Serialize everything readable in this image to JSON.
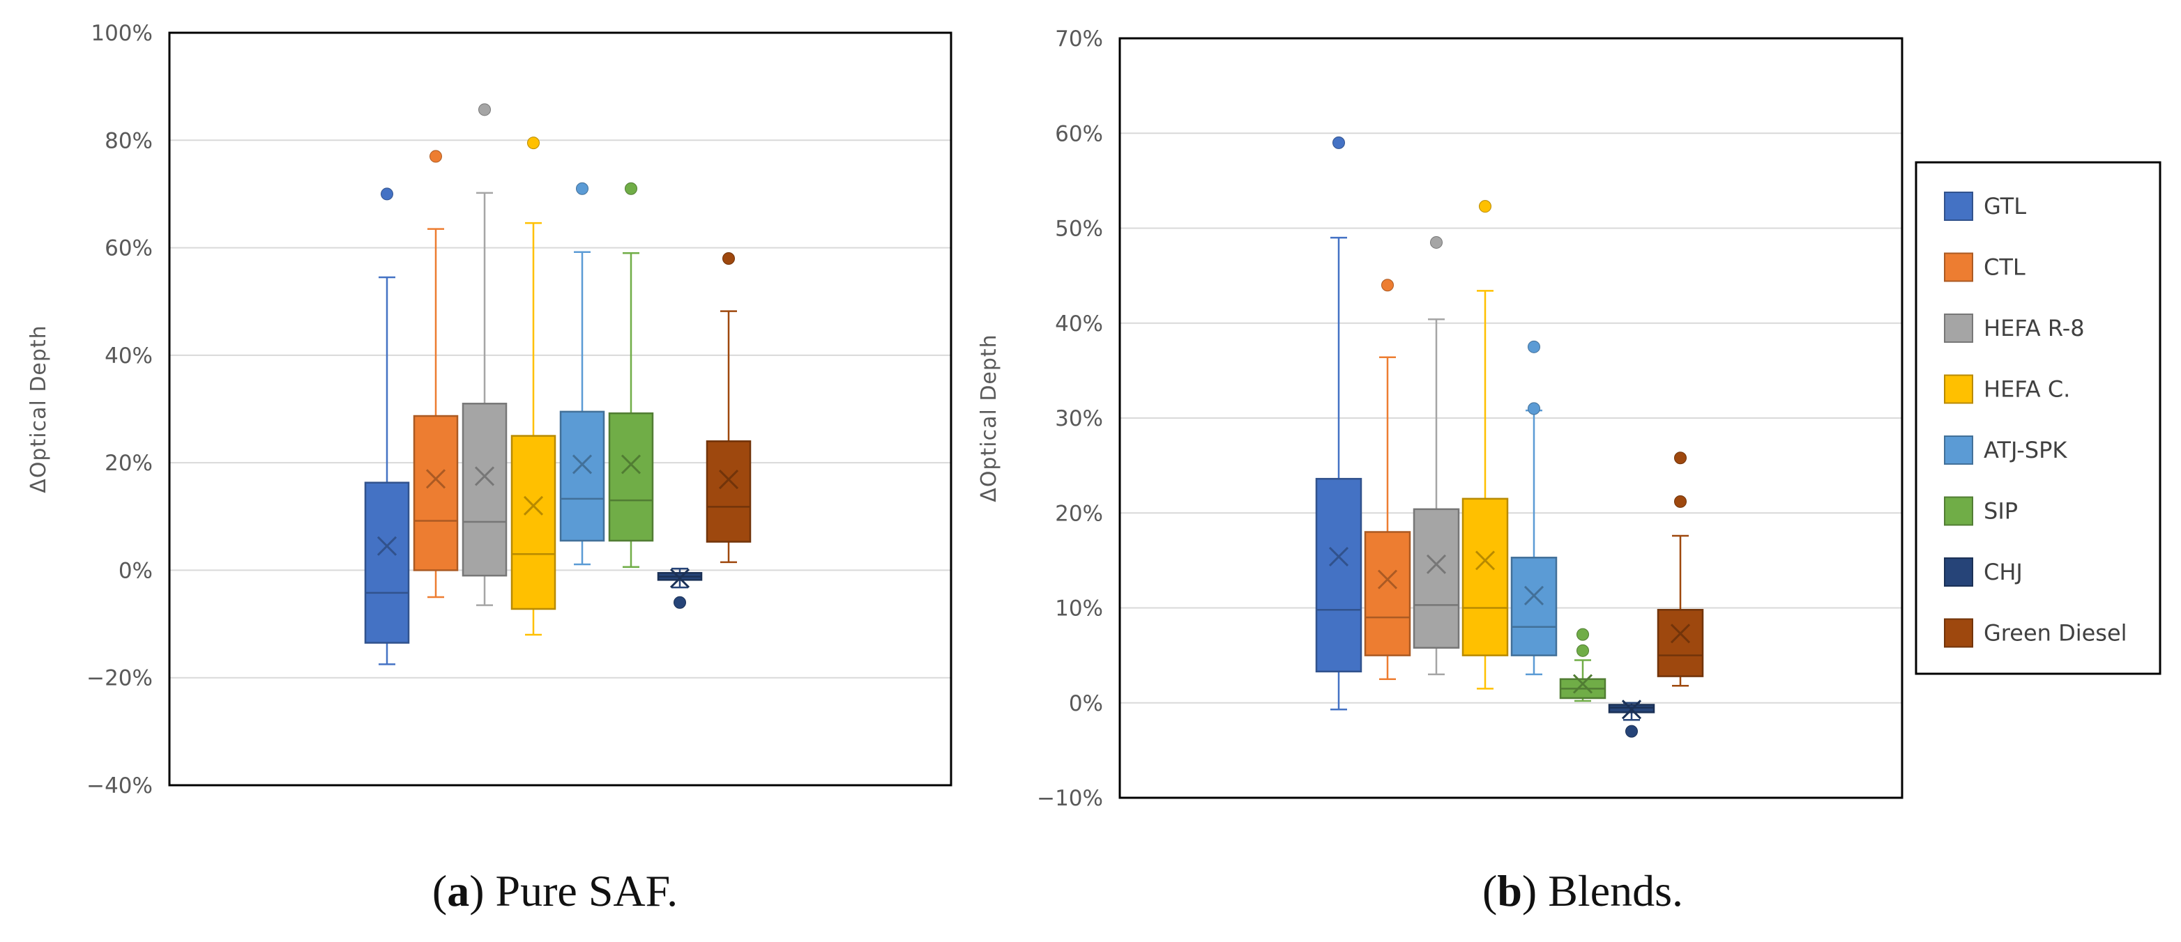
{
  "figure": {
    "captions": [
      {
        "prefix": "(",
        "letter": "a",
        "suffix": ")",
        "text": " Pure SAF."
      },
      {
        "prefix": "(",
        "letter": "b",
        "suffix": ")",
        "text": " Blends."
      }
    ]
  },
  "legend": {
    "items": [
      {
        "label": "GTL",
        "color": "#4472C4"
      },
      {
        "label": "CTL",
        "color": "#ED7D31"
      },
      {
        "label": "HEFA R-8",
        "color": "#A5A5A5"
      },
      {
        "label": "HEFA C.",
        "color": "#FFC000"
      },
      {
        "label": "ATJ-SPK",
        "color": "#5B9BD5"
      },
      {
        "label": "SIP",
        "color": "#70AD47"
      },
      {
        "label": "CHJ",
        "color": "#264478"
      },
      {
        "label": "Green Diesel",
        "color": "#9E480E"
      }
    ]
  },
  "chart_data": [
    {
      "type": "box",
      "title": "Pure SAF.",
      "ylabel": "ΔOptical Depth",
      "ylim": [
        -40,
        100
      ],
      "yticks": [
        -40,
        -20,
        0,
        20,
        40,
        60,
        80,
        100
      ],
      "ytick_labels": [
        "−40%",
        "−20%",
        "0%",
        "20%",
        "40%",
        "60%",
        "80%",
        "100%"
      ],
      "grid": true,
      "series": [
        {
          "name": "GTL",
          "color": "#4472C4",
          "q1": -13.5,
          "median": -4.2,
          "q3": 16.3,
          "mean": 4.5,
          "whisker_low": -17.5,
          "whisker_high": 54.5,
          "outliers": [
            70
          ]
        },
        {
          "name": "CTL",
          "color": "#ED7D31",
          "q1": 0,
          "median": 9.2,
          "q3": 28.7,
          "mean": 17,
          "whisker_low": -5,
          "whisker_high": 63.5,
          "outliers": [
            77
          ]
        },
        {
          "name": "HEFA R-8",
          "color": "#A5A5A5",
          "q1": -1,
          "median": 9,
          "q3": 31,
          "mean": 17.5,
          "whisker_low": -6.5,
          "whisker_high": 70.2,
          "outliers": [
            85.7
          ]
        },
        {
          "name": "HEFA C.",
          "color": "#FFC000",
          "q1": -7.2,
          "median": 3,
          "q3": 25,
          "mean": 12,
          "whisker_low": -12,
          "whisker_high": 64.6,
          "outliers": [
            79.5
          ]
        },
        {
          "name": "ATJ-SPK",
          "color": "#5B9BD5",
          "q1": 5.5,
          "median": 13.3,
          "q3": 29.5,
          "mean": 19.7,
          "whisker_low": 1.1,
          "whisker_high": 59.2,
          "outliers": [
            71
          ]
        },
        {
          "name": "SIP",
          "color": "#70AD47",
          "q1": 5.5,
          "median": 13,
          "q3": 29.2,
          "mean": 19.7,
          "whisker_low": 0.6,
          "whisker_high": 59,
          "outliers": [
            71
          ]
        },
        {
          "name": "CHJ",
          "color": "#264478",
          "q1": -1.8,
          "median": -1.2,
          "q3": -0.5,
          "mean": -1.5,
          "whisker_low": -3.2,
          "whisker_high": 0.3,
          "outliers": [
            -6
          ]
        },
        {
          "name": "Green Diesel",
          "color": "#9E480E",
          "q1": 5.3,
          "median": 11.8,
          "q3": 24,
          "mean": 16.9,
          "whisker_low": 1.5,
          "whisker_high": 48.2,
          "outliers": [
            58
          ]
        }
      ]
    },
    {
      "type": "box",
      "title": "Blends.",
      "ylabel": "ΔOptical Depth",
      "ylim": [
        -10,
        70
      ],
      "yticks": [
        -10,
        0,
        10,
        20,
        30,
        40,
        50,
        60,
        70
      ],
      "ytick_labels": [
        "−10%",
        "0%",
        "10%",
        "20%",
        "30%",
        "40%",
        "50%",
        "60%",
        "70%"
      ],
      "grid": true,
      "series": [
        {
          "name": "GTL",
          "color": "#4472C4",
          "q1": 3.3,
          "median": 9.8,
          "q3": 23.6,
          "mean": 15.4,
          "whisker_low": -0.7,
          "whisker_high": 49,
          "outliers": [
            59
          ]
        },
        {
          "name": "CTL",
          "color": "#ED7D31",
          "q1": 5,
          "median": 9,
          "q3": 18,
          "mean": 13,
          "whisker_low": 2.5,
          "whisker_high": 36.4,
          "outliers": [
            44
          ]
        },
        {
          "name": "HEFA R-8",
          "color": "#A5A5A5",
          "q1": 5.8,
          "median": 10.3,
          "q3": 20.4,
          "mean": 14.6,
          "whisker_low": 3,
          "whisker_high": 40.4,
          "outliers": [
            48.5
          ]
        },
        {
          "name": "HEFA C.",
          "color": "#FFC000",
          "q1": 5,
          "median": 10,
          "q3": 21.5,
          "mean": 15,
          "whisker_low": 1.5,
          "whisker_high": 43.4,
          "outliers": [
            52.3
          ]
        },
        {
          "name": "ATJ-SPK",
          "color": "#5B9BD5",
          "q1": 5,
          "median": 8,
          "q3": 15.3,
          "mean": 11.3,
          "whisker_low": 3,
          "whisker_high": 30.8,
          "outliers": [
            31,
            37.5
          ]
        },
        {
          "name": "SIP",
          "color": "#70AD47",
          "q1": 0.5,
          "median": 1.5,
          "q3": 2.5,
          "mean": 2,
          "whisker_low": 0.2,
          "whisker_high": 4.5,
          "outliers": [
            5.5,
            7.2
          ]
        },
        {
          "name": "CHJ",
          "color": "#264478",
          "q1": -1,
          "median": -0.5,
          "q3": -0.2,
          "mean": -0.7,
          "whisker_low": -1.8,
          "whisker_high": 0,
          "outliers": [
            -3
          ]
        },
        {
          "name": "Green Diesel",
          "color": "#9E480E",
          "q1": 2.8,
          "median": 5,
          "q3": 9.8,
          "mean": 7.3,
          "whisker_low": 1.8,
          "whisker_high": 17.6,
          "outliers": [
            21.2,
            25.8
          ]
        }
      ]
    }
  ]
}
